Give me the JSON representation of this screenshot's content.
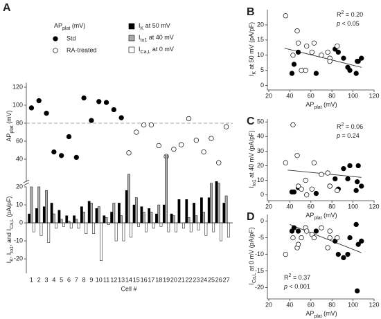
{
  "chart_data": [
    {
      "type": "combo",
      "panel": "A",
      "categories": [
        "1",
        "2",
        "3",
        "4",
        "5",
        "6",
        "7",
        "8",
        "9",
        "10",
        "11",
        "12",
        "13",
        "14",
        "15",
        "16",
        "17",
        "18",
        "19",
        "20",
        "21",
        "22",
        "23",
        "24",
        "25",
        "26",
        "27"
      ],
      "xlabel": "Cell #",
      "scatter": {
        "legend_title": [
          "AP",
          {
            "sub": "plat"
          },
          " (mV)"
        ],
        "ylabel": [
          "AP",
          {
            "sub": "plat"
          },
          " (mV)"
        ],
        "ylim": [
          30,
          125
        ],
        "yticks": [
          40,
          60,
          80,
          100,
          120
        ],
        "reference_line": 80,
        "series": [
          {
            "name": "Std",
            "color": "#000000",
            "values": [
              97,
              105,
              91,
              48,
              44,
              65,
              42,
              108,
              83,
              104,
              103,
              95,
              86,
              null,
              null,
              null,
              null,
              null,
              null,
              null,
              null,
              null,
              null,
              null,
              null,
              null,
              null
            ]
          },
          {
            "name": "RA-treated",
            "color": "#ffffff",
            "values": [
              null,
              null,
              null,
              null,
              null,
              null,
              null,
              null,
              null,
              null,
              null,
              null,
              null,
              47,
              70,
              78,
              78,
              55,
              43,
              51,
              56,
              85,
              61,
              48,
              63,
              36,
              76
            ]
          }
        ]
      },
      "bars": {
        "ylabel": [
          "I",
          {
            "sub": "K"
          },
          ", I",
          {
            "sub": "to1"
          },
          ", and I",
          {
            "sub": "Ca,L"
          },
          " (pA/pF)"
        ],
        "ylim": [
          -28,
          20
        ],
        "yticks": [
          -20,
          -10,
          0,
          10,
          20
        ],
        "series": [
          {
            "name": [
              "I",
              {
                "sub": "K"
              },
              " at 50 mV"
            ],
            "color": "#000000",
            "values": [
              5,
              8,
              9,
              11,
              7,
              4,
              4,
              9,
              12,
              8,
              4,
              6,
              11,
              18,
              10,
              9,
              8,
              5,
              10,
              5,
              13,
              13,
              11,
              14,
              14,
              23,
              11
            ]
          },
          {
            "name": [
              "I",
              {
                "sub": "to1"
              },
              " at 40 mV"
            ],
            "color": "#aaaaaa",
            "values": [
              20,
              20,
              18,
              5,
              2,
              1,
              2,
              6,
              11,
              9,
              3,
              11,
              4,
              27,
              14,
              6,
              6,
              10,
              48,
              4,
              0,
              3,
              4,
              6,
              22,
              22,
              15
            ]
          },
          {
            "name": [
              "I",
              {
                "sub": "Ca,L"
              },
              " at 0 mV"
            ],
            "color": "#ffffff",
            "values": [
              -5,
              -7,
              -11,
              -3,
              -2,
              -3,
              -3,
              -6,
              -6,
              -21,
              -1,
              -10,
              -10,
              -8,
              -2,
              -5,
              -3,
              -2,
              -5,
              -5,
              -3,
              -5,
              -4,
              -7,
              -5,
              -10,
              -8
            ]
          }
        ]
      }
    },
    {
      "type": "scatter",
      "panel": "B",
      "xlabel": [
        "AP",
        {
          "sub": "plat"
        },
        " (mV)"
      ],
      "ylabel": [
        "I",
        {
          "sub": "K"
        },
        " at 50 mV (pA/pF)"
      ],
      "xlim": [
        20,
        120
      ],
      "xticks": [
        20,
        40,
        60,
        80,
        100,
        120
      ],
      "ylim": [
        -1,
        25
      ],
      "yticks": [
        0,
        5,
        10,
        15,
        20
      ],
      "series": [
        {
          "name": "Std",
          "color": "#000000",
          "x": [
            97,
            105,
            91,
            48,
            44,
            65,
            42,
            108,
            83,
            104,
            103,
            95,
            86
          ],
          "y": [
            5,
            8,
            9,
            11,
            7,
            4,
            4,
            9,
            12,
            8,
            4,
            6,
            11
          ]
        },
        {
          "name": "RA-treated",
          "color": "#ffffff",
          "x": [
            47,
            70,
            78,
            78,
            55,
            43,
            51,
            56,
            85,
            61,
            48,
            63,
            36,
            76
          ],
          "y": [
            18,
            10,
            9,
            8,
            5,
            10,
            5,
            13,
            13,
            11,
            14,
            14,
            23,
            11
          ]
        }
      ],
      "fit_line": {
        "x": [
          35,
          108
        ],
        "y": [
          12.3,
          6
        ]
      },
      "annotations": [
        [
          "R",
          {
            "sup": "2"
          },
          " = 0.20"
        ],
        [
          {
            "it": "p"
          },
          " < 0.05"
        ]
      ]
    },
    {
      "type": "scatter",
      "panel": "C",
      "xlabel": [
        "AP",
        {
          "sub": "plat"
        },
        " (mV)"
      ],
      "ylabel": [
        "I",
        {
          "sub": "to1"
        },
        " at 40 mV (pA/pF)"
      ],
      "xlim": [
        20,
        120
      ],
      "xticks": [
        20,
        40,
        60,
        80,
        100,
        120
      ],
      "ylim": [
        -3,
        52
      ],
      "yticks": [
        0,
        10,
        20,
        30,
        40,
        50
      ],
      "series": [
        {
          "name": "Std",
          "color": "#000000",
          "x": [
            97,
            105,
            91,
            48,
            44,
            65,
            42,
            108,
            83,
            104,
            103,
            95,
            86
          ],
          "y": [
            20,
            20,
            18,
            5,
            2,
            1,
            2,
            6,
            11,
            9,
            3,
            11,
            4
          ]
        },
        {
          "name": "RA-treated",
          "color": "#ffffff",
          "x": [
            47,
            70,
            78,
            78,
            55,
            43,
            51,
            56,
            85,
            61,
            48,
            63,
            36,
            76
          ],
          "y": [
            27,
            14,
            6,
            6,
            10,
            48,
            4,
            0,
            3,
            4,
            6,
            22,
            22,
            15
          ]
        }
      ],
      "fit_line": {
        "x": [
          38,
          108
        ],
        "y": [
          17,
          12
        ]
      },
      "annotations": [
        [
          "R",
          {
            "sup": "2"
          },
          " = 0.06"
        ],
        [
          {
            "it": "p"
          },
          " = 0.24"
        ]
      ]
    },
    {
      "type": "scatter",
      "panel": "D",
      "xlabel": [
        "AP",
        {
          "sub": "plat"
        },
        " (mV)"
      ],
      "ylabel": [
        "I",
        {
          "sub": "Ca,L"
        },
        " at 0 mV (pA/pF)"
      ],
      "xlim": [
        20,
        120
      ],
      "xticks": [
        20,
        40,
        60,
        80,
        100,
        120
      ],
      "ylim": [
        -23,
        2
      ],
      "yticks": [
        -20,
        -15,
        -10,
        -5,
        0
      ],
      "series": [
        {
          "name": "Std",
          "color": "#000000",
          "x": [
            97,
            105,
            91,
            48,
            44,
            65,
            42,
            108,
            83,
            104,
            103,
            95,
            86
          ],
          "y": [
            -5,
            -7,
            -11,
            -3,
            -2,
            -3,
            -3,
            -6,
            -6,
            -21,
            -1,
            -10,
            -10
          ]
        },
        {
          "name": "RA-treated",
          "color": "#ffffff",
          "x": [
            47,
            70,
            78,
            78,
            55,
            43,
            51,
            56,
            85,
            61,
            48,
            63,
            36,
            76
          ],
          "y": [
            -8,
            -2,
            -5,
            -3,
            -2,
            -5,
            -5,
            -3,
            -5,
            -4,
            -7,
            -5,
            -10,
            -8
          ]
        }
      ],
      "fit_line": {
        "x": [
          40,
          108
        ],
        "y": [
          -1,
          -9.5
        ]
      },
      "annotations": [
        [
          "R",
          {
            "sup": "2"
          },
          " = 0.37"
        ],
        [
          {
            "it": "p"
          },
          " < 0.001"
        ]
      ]
    }
  ]
}
